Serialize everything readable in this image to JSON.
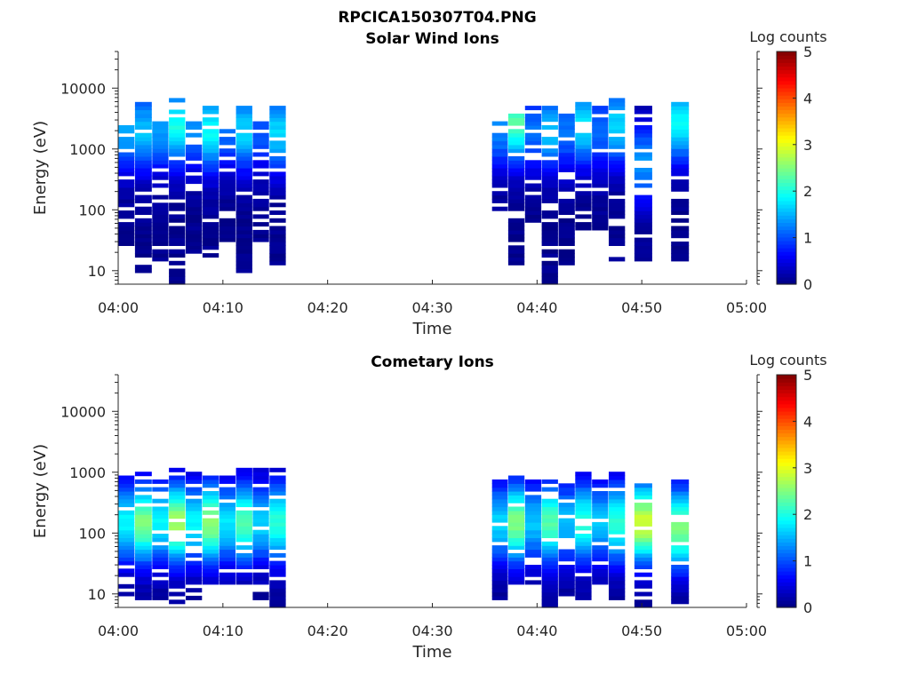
{
  "figure": {
    "title": "RPCICA150307T04.PNG",
    "colormap": "jet",
    "colors": {
      "background": "#ffffff",
      "axes": "#262626",
      "jet_low": "#00008f",
      "jet_mid": "#00ffff",
      "jet_high": "#800000"
    }
  },
  "chart_data": [
    {
      "type": "heatmap",
      "title": "Solar Wind Ions",
      "xlabel": "Time",
      "ylabel": "Energy (eV)",
      "yscale": "log",
      "ylim": [
        6,
        40000
      ],
      "xlim": [
        "04:00",
        "05:00"
      ],
      "xticks": [
        "04:00",
        "04:10",
        "04:20",
        "04:30",
        "04:40",
        "04:50",
        "05:00"
      ],
      "yticks": [
        "10",
        "100",
        "1000",
        "10000"
      ],
      "colorbar": {
        "label": "Log counts",
        "range": [
          0,
          5
        ],
        "ticks": [
          "0",
          "1",
          "2",
          "3",
          "4",
          "5"
        ]
      },
      "grid": false,
      "sweeps": [
        {
          "t0": 0.0,
          "t1": 1.55,
          "emin": 25,
          "emax": 3000,
          "peak_e": 2000,
          "peak_v": 1.4
        },
        {
          "t0": 1.6,
          "t1": 3.2,
          "emin": 8,
          "emax": 6000,
          "peak_e": 2000,
          "peak_v": 1.5
        },
        {
          "t0": 3.25,
          "t1": 4.8,
          "emin": 15,
          "emax": 3000,
          "peak_e": 2000,
          "peak_v": 1.3
        },
        {
          "t0": 4.85,
          "t1": 6.4,
          "emin": 6,
          "emax": 6500,
          "peak_e": 2500,
          "peak_v": 1.9
        },
        {
          "t0": 6.45,
          "t1": 8.0,
          "emin": 20,
          "emax": 3000,
          "peak_e": 2000,
          "peak_v": 1.2
        },
        {
          "t0": 8.05,
          "t1": 9.6,
          "emin": 15,
          "emax": 5500,
          "peak_e": 2000,
          "peak_v": 1.8
        },
        {
          "t0": 9.65,
          "t1": 11.2,
          "emin": 30,
          "emax": 3000,
          "peak_e": 2000,
          "peak_v": 1.1
        },
        {
          "t0": 11.25,
          "t1": 12.8,
          "emin": 10,
          "emax": 5000,
          "peak_e": 2000,
          "peak_v": 1.6
        },
        {
          "t0": 12.85,
          "t1": 14.4,
          "emin": 30,
          "emax": 3000,
          "peak_e": 2000,
          "peak_v": 1.0
        },
        {
          "t0": 14.45,
          "t1": 16.0,
          "emin": 12,
          "emax": 5000,
          "peak_e": 2000,
          "peak_v": 1.6
        },
        {
          "t0": 35.7,
          "t1": 37.2,
          "emin": 70,
          "emax": 2900,
          "peak_e": 2000,
          "peak_v": 1.2
        },
        {
          "t0": 37.25,
          "t1": 38.8,
          "emin": 13,
          "emax": 4000,
          "peak_e": 2800,
          "peak_v": 2.2
        },
        {
          "t0": 38.85,
          "t1": 40.4,
          "emin": 60,
          "emax": 5000,
          "peak_e": 2000,
          "peak_v": 1.1
        },
        {
          "t0": 40.45,
          "t1": 42.0,
          "emin": 6,
          "emax": 6000,
          "peak_e": 2000,
          "peak_v": 1.5
        },
        {
          "t0": 42.05,
          "t1": 43.6,
          "emin": 13,
          "emax": 4000,
          "peak_e": 2000,
          "peak_v": 1.1
        },
        {
          "t0": 43.65,
          "t1": 45.2,
          "emin": 50,
          "emax": 7000,
          "peak_e": 2500,
          "peak_v": 1.7
        },
        {
          "t0": 45.25,
          "t1": 46.8,
          "emin": 50,
          "emax": 5000,
          "peak_e": 2000,
          "peak_v": 1.1
        },
        {
          "t0": 46.85,
          "t1": 48.4,
          "emin": 13,
          "emax": 7000,
          "peak_e": 2500,
          "peak_v": 1.6
        },
        {
          "t0": 49.3,
          "t1": 51.0,
          "emin": 15,
          "emax": 5000,
          "peak_e": 600,
          "peak_v": 1.3
        },
        {
          "t0": 52.8,
          "t1": 54.5,
          "emin": 15,
          "emax": 6000,
          "peak_e": 2800,
          "peak_v": 1.8
        }
      ]
    },
    {
      "type": "heatmap",
      "title": "Cometary Ions",
      "xlabel": "Time",
      "ylabel": "Energy (eV)",
      "yscale": "log",
      "ylim": [
        6,
        40000
      ],
      "xlim": [
        "04:00",
        "05:00"
      ],
      "xticks": [
        "04:00",
        "04:10",
        "04:20",
        "04:30",
        "04:40",
        "04:50",
        "05:00"
      ],
      "yticks": [
        "10",
        "100",
        "1000",
        "10000"
      ],
      "colorbar": {
        "label": "Log counts",
        "range": [
          0,
          5
        ],
        "ticks": [
          "0",
          "1",
          "2",
          "3",
          "4",
          "5"
        ]
      },
      "grid": false,
      "sweeps": [
        {
          "t0": 0.0,
          "t1": 1.55,
          "emin": 8,
          "emax": 900,
          "peak_e": 150,
          "peak_v": 1.8
        },
        {
          "t0": 1.6,
          "t1": 3.2,
          "emin": 8,
          "emax": 1000,
          "peak_e": 150,
          "peak_v": 2.4
        },
        {
          "t0": 3.25,
          "t1": 4.8,
          "emin": 8,
          "emax": 900,
          "peak_e": 150,
          "peak_v": 1.8
        },
        {
          "t0": 4.85,
          "t1": 6.4,
          "emin": 6,
          "emax": 1100,
          "peak_e": 150,
          "peak_v": 2.6
        },
        {
          "t0": 6.45,
          "t1": 8.0,
          "emin": 8,
          "emax": 1000,
          "peak_e": 150,
          "peak_v": 1.8
        },
        {
          "t0": 8.05,
          "t1": 9.6,
          "emin": 14,
          "emax": 1000,
          "peak_e": 150,
          "peak_v": 2.5
        },
        {
          "t0": 9.65,
          "t1": 11.2,
          "emin": 14,
          "emax": 1000,
          "peak_e": 150,
          "peak_v": 1.7
        },
        {
          "t0": 11.25,
          "t1": 12.8,
          "emin": 14,
          "emax": 1200,
          "peak_e": 150,
          "peak_v": 2.2
        },
        {
          "t0": 12.85,
          "t1": 14.4,
          "emin": 8,
          "emax": 1200,
          "peak_e": 150,
          "peak_v": 1.6
        },
        {
          "t0": 14.45,
          "t1": 16.0,
          "emin": 6,
          "emax": 1200,
          "peak_e": 150,
          "peak_v": 2.0
        },
        {
          "t0": 35.7,
          "t1": 37.2,
          "emin": 8,
          "emax": 800,
          "peak_e": 150,
          "peak_v": 1.6
        },
        {
          "t0": 37.25,
          "t1": 38.8,
          "emin": 14,
          "emax": 850,
          "peak_e": 150,
          "peak_v": 2.4
        },
        {
          "t0": 38.85,
          "t1": 40.4,
          "emin": 14,
          "emax": 800,
          "peak_e": 150,
          "peak_v": 1.5
        },
        {
          "t0": 40.45,
          "t1": 42.0,
          "emin": 6,
          "emax": 800,
          "peak_e": 150,
          "peak_v": 2.2
        },
        {
          "t0": 42.05,
          "t1": 43.6,
          "emin": 10,
          "emax": 700,
          "peak_e": 150,
          "peak_v": 1.5
        },
        {
          "t0": 43.65,
          "t1": 45.2,
          "emin": 8,
          "emax": 1000,
          "peak_e": 150,
          "peak_v": 2.0
        },
        {
          "t0": 45.25,
          "t1": 46.8,
          "emin": 14,
          "emax": 800,
          "peak_e": 150,
          "peak_v": 1.5
        },
        {
          "t0": 46.85,
          "t1": 48.4,
          "emin": 8,
          "emax": 1000,
          "peak_e": 150,
          "peak_v": 2.0
        },
        {
          "t0": 49.3,
          "t1": 51.0,
          "emin": 6,
          "emax": 650,
          "peak_e": 150,
          "peak_v": 2.8
        },
        {
          "t0": 52.8,
          "t1": 54.5,
          "emin": 6,
          "emax": 800,
          "peak_e": 120,
          "peak_v": 2.4
        }
      ]
    }
  ]
}
